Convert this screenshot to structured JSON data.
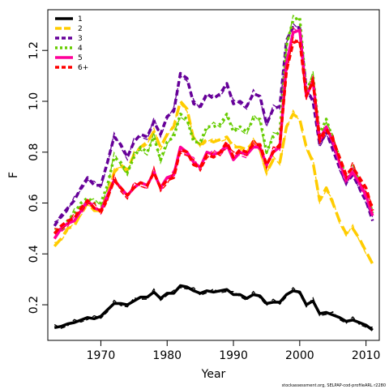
{
  "chart_data": {
    "type": "line",
    "title": "",
    "xlabel": "Year",
    "ylabel": "F",
    "xlim": [
      1962,
      2012
    ],
    "ylim": [
      0.06,
      1.36
    ],
    "x_ticks": [
      1970,
      1980,
      1990,
      2000,
      2010
    ],
    "y_ticks": [
      0.2,
      0.4,
      0.6,
      0.8,
      1.0,
      1.2
    ],
    "x_tick_labels": [
      "1970",
      "1980",
      "1990",
      "2000",
      "2010"
    ],
    "y_tick_labels": [
      "0.2",
      "0.4",
      "0.6",
      "0.8",
      "1.0",
      "1.2"
    ],
    "grid": false,
    "legend_position": "top-left",
    "credit": "stockassessment.org, SELPAP-cod-profileARL r2280",
    "x": [
      1963,
      1964,
      1965,
      1966,
      1967,
      1968,
      1969,
      1970,
      1971,
      1972,
      1973,
      1974,
      1975,
      1976,
      1977,
      1978,
      1979,
      1980,
      1981,
      1982,
      1983,
      1984,
      1985,
      1986,
      1987,
      1988,
      1989,
      1990,
      1991,
      1992,
      1993,
      1994,
      1995,
      1996,
      1997,
      1998,
      1999,
      2000,
      2001,
      2002,
      2003,
      2004,
      2005,
      2006,
      2007,
      2008,
      2009,
      2010,
      2011
    ],
    "series": [
      {
        "name": "1",
        "color": "#000000",
        "dash": "solid",
        "values": [
          0.11,
          0.115,
          0.125,
          0.13,
          0.14,
          0.15,
          0.145,
          0.155,
          0.18,
          0.205,
          0.205,
          0.2,
          0.215,
          0.23,
          0.23,
          0.25,
          0.225,
          0.245,
          0.245,
          0.275,
          0.27,
          0.255,
          0.245,
          0.255,
          0.25,
          0.255,
          0.26,
          0.24,
          0.24,
          0.225,
          0.24,
          0.235,
          0.205,
          0.21,
          0.21,
          0.24,
          0.255,
          0.25,
          0.2,
          0.215,
          0.165,
          0.17,
          0.16,
          0.15,
          0.135,
          0.14,
          0.13,
          0.12,
          0.1
        ]
      },
      {
        "name": "2",
        "color": "#ffcc00",
        "dash": "longdash",
        "values": [
          0.43,
          0.46,
          0.5,
          0.51,
          0.56,
          0.6,
          0.57,
          0.57,
          0.64,
          0.72,
          0.75,
          0.73,
          0.79,
          0.82,
          0.84,
          0.88,
          0.82,
          0.87,
          0.9,
          1.0,
          0.97,
          0.85,
          0.83,
          0.85,
          0.84,
          0.85,
          0.86,
          0.82,
          0.82,
          0.81,
          0.84,
          0.81,
          0.72,
          0.77,
          0.76,
          0.9,
          0.95,
          0.93,
          0.82,
          0.76,
          0.61,
          0.66,
          0.6,
          0.53,
          0.48,
          0.5,
          0.46,
          0.41,
          0.36
        ]
      },
      {
        "name": "3",
        "color": "#660099",
        "dash": "dashed",
        "values": [
          0.51,
          0.55,
          0.58,
          0.61,
          0.66,
          0.7,
          0.67,
          0.67,
          0.76,
          0.86,
          0.83,
          0.78,
          0.84,
          0.87,
          0.86,
          0.92,
          0.87,
          0.94,
          0.96,
          1.11,
          1.09,
          0.99,
          0.98,
          1.03,
          1.01,
          1.03,
          1.07,
          0.99,
          1.0,
          0.98,
          1.03,
          1.02,
          0.91,
          0.97,
          0.98,
          1.24,
          1.29,
          1.29,
          1.05,
          1.0,
          0.83,
          0.88,
          0.81,
          0.74,
          0.68,
          0.71,
          0.66,
          0.61,
          0.53
        ]
      },
      {
        "name": "4",
        "color": "#66cc00",
        "dash": "dotted",
        "values": [
          0.48,
          0.5,
          0.53,
          0.56,
          0.6,
          0.62,
          0.6,
          0.6,
          0.67,
          0.78,
          0.76,
          0.72,
          0.78,
          0.82,
          0.8,
          0.86,
          0.77,
          0.84,
          0.86,
          0.95,
          0.93,
          0.84,
          0.84,
          0.9,
          0.9,
          0.91,
          0.95,
          0.88,
          0.9,
          0.88,
          0.93,
          0.93,
          0.8,
          0.86,
          0.88,
          1.22,
          1.32,
          1.33,
          1.04,
          1.1,
          0.87,
          0.93,
          0.85,
          0.78,
          0.7,
          0.73,
          0.69,
          0.63,
          0.56
        ]
      },
      {
        "name": "5",
        "color": "#ff0099",
        "dash": "solid",
        "values": [
          0.46,
          0.5,
          0.52,
          0.53,
          0.57,
          0.61,
          0.58,
          0.57,
          0.63,
          0.69,
          0.66,
          0.63,
          0.66,
          0.68,
          0.67,
          0.72,
          0.66,
          0.7,
          0.71,
          0.82,
          0.8,
          0.76,
          0.74,
          0.8,
          0.79,
          0.8,
          0.83,
          0.77,
          0.8,
          0.79,
          0.82,
          0.82,
          0.75,
          0.8,
          0.82,
          1.15,
          1.27,
          1.28,
          1.02,
          1.08,
          0.85,
          0.9,
          0.84,
          0.76,
          0.69,
          0.72,
          0.68,
          0.63,
          0.55
        ]
      },
      {
        "name": "6+",
        "color": "#ff0000",
        "dash": "dashed",
        "values": [
          0.48,
          0.51,
          0.53,
          0.54,
          0.58,
          0.61,
          0.58,
          0.57,
          0.62,
          0.69,
          0.66,
          0.63,
          0.66,
          0.68,
          0.67,
          0.72,
          0.66,
          0.69,
          0.7,
          0.81,
          0.8,
          0.75,
          0.74,
          0.79,
          0.78,
          0.8,
          0.84,
          0.78,
          0.81,
          0.8,
          0.83,
          0.83,
          0.75,
          0.8,
          0.83,
          1.12,
          1.23,
          1.24,
          1.02,
          1.08,
          0.85,
          0.89,
          0.85,
          0.78,
          0.71,
          0.74,
          0.7,
          0.66,
          0.57
        ]
      }
    ]
  }
}
